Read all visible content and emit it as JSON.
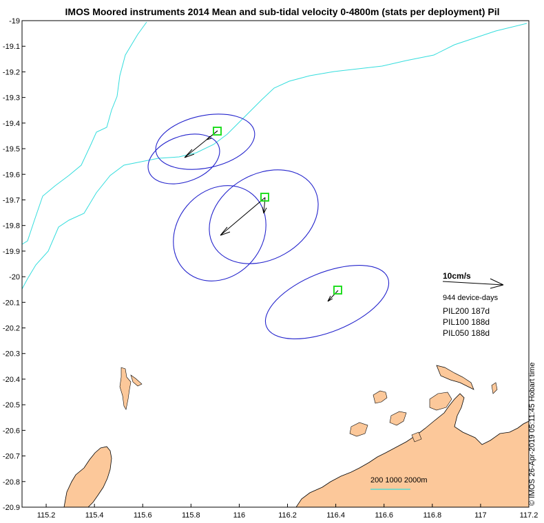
{
  "title": "IMOS Moored instruments 2014 Mean and sub-tidal velocity 0-4800m (stats per deployment) Pil",
  "x_ticks": [
    "115.2",
    "115.4",
    "115.6",
    "115.8",
    "116",
    "116.2",
    "116.4",
    "116.6",
    "116.8",
    "117",
    "117.2"
  ],
  "y_ticks": [
    "-19",
    "-19.1",
    "-19.2",
    "-19.3",
    "-19.4",
    "-19.5",
    "-19.6",
    "-19.7",
    "-19.8",
    "-19.9",
    "-20",
    "-20.1",
    "-20.2",
    "-20.3",
    "-20.4",
    "-20.5",
    "-20.6",
    "-20.7",
    "-20.8",
    "-20.9"
  ],
  "legend": {
    "scale_label": "10cm/s",
    "device_days": "944 device-days",
    "deployments": [
      "PIL200 187d",
      "PIL100 188d",
      "PIL050 188d"
    ]
  },
  "depth_legend": "200 1000 2000m",
  "credit": "© IMOS 26-Apr-2019 05:11:45 Hobart time",
  "colors": {
    "land": "#fcc89a",
    "contour": "#33dddd",
    "ellipse": "#2222cc",
    "station_marker": "#22dd22",
    "arrow": "#000000"
  },
  "chart_data": {
    "type": "map",
    "xlim": [
      115.1,
      117.2
    ],
    "ylim": [
      -20.9,
      -19.0
    ],
    "stations": [
      {
        "name": "PIL200",
        "lon": 115.91,
        "lat": -19.435
      },
      {
        "name": "PIL100",
        "lon": 116.115,
        "lat": -19.695
      },
      {
        "name": "PIL050",
        "lon": 116.42,
        "lat": -20.05
      }
    ]
  }
}
